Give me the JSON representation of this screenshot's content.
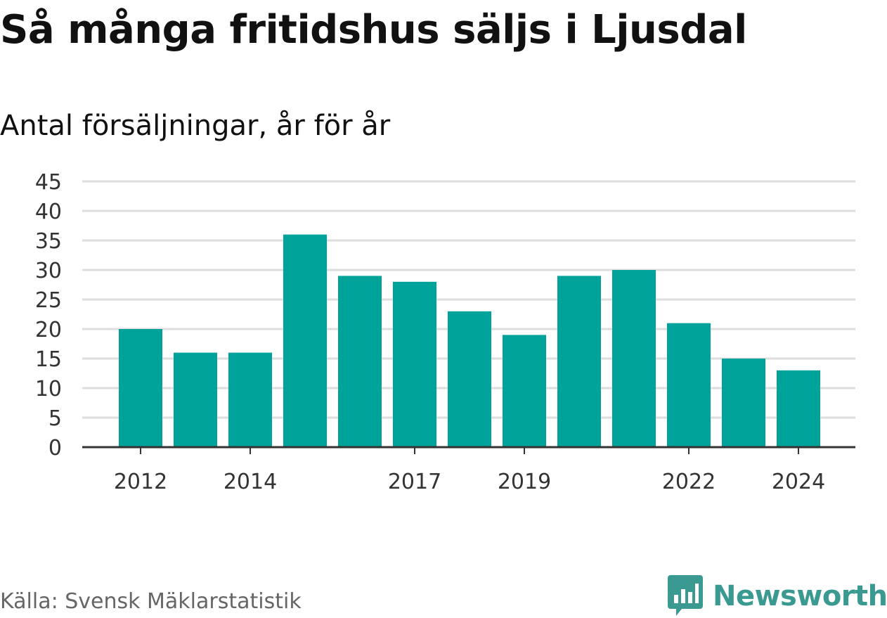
{
  "header": {
    "title": "Så många fritidshus säljs i Ljusdal",
    "subtitle": "Antal försäljningar, år för år"
  },
  "footer": {
    "source": "Källa: Svensk Mäklarstatistik",
    "brand": "Newsworthy",
    "brand_icon": "bar-chart-speech-bubble-icon"
  },
  "colors": {
    "bar": "#00a39a",
    "grid": "#dddddd",
    "axis": "#333333",
    "brand": "#3a9a92"
  },
  "chart_data": {
    "type": "bar",
    "categories": [
      "2012",
      "2013",
      "2014",
      "2015",
      "2016",
      "2017",
      "2018",
      "2019",
      "2020",
      "2021",
      "2022",
      "2023",
      "2024"
    ],
    "values": [
      20,
      16,
      16,
      36,
      29,
      28,
      23,
      19,
      29,
      30,
      21,
      15,
      13
    ],
    "x_tick_labels": [
      "2012",
      "2014",
      "2017",
      "2019",
      "2022",
      "2024"
    ],
    "y_ticks": [
      0,
      5,
      10,
      15,
      20,
      25,
      30,
      35,
      40,
      45
    ],
    "ylim": [
      0,
      45
    ],
    "xlabel": "",
    "ylabel": "",
    "grid": true,
    "legend": false
  }
}
